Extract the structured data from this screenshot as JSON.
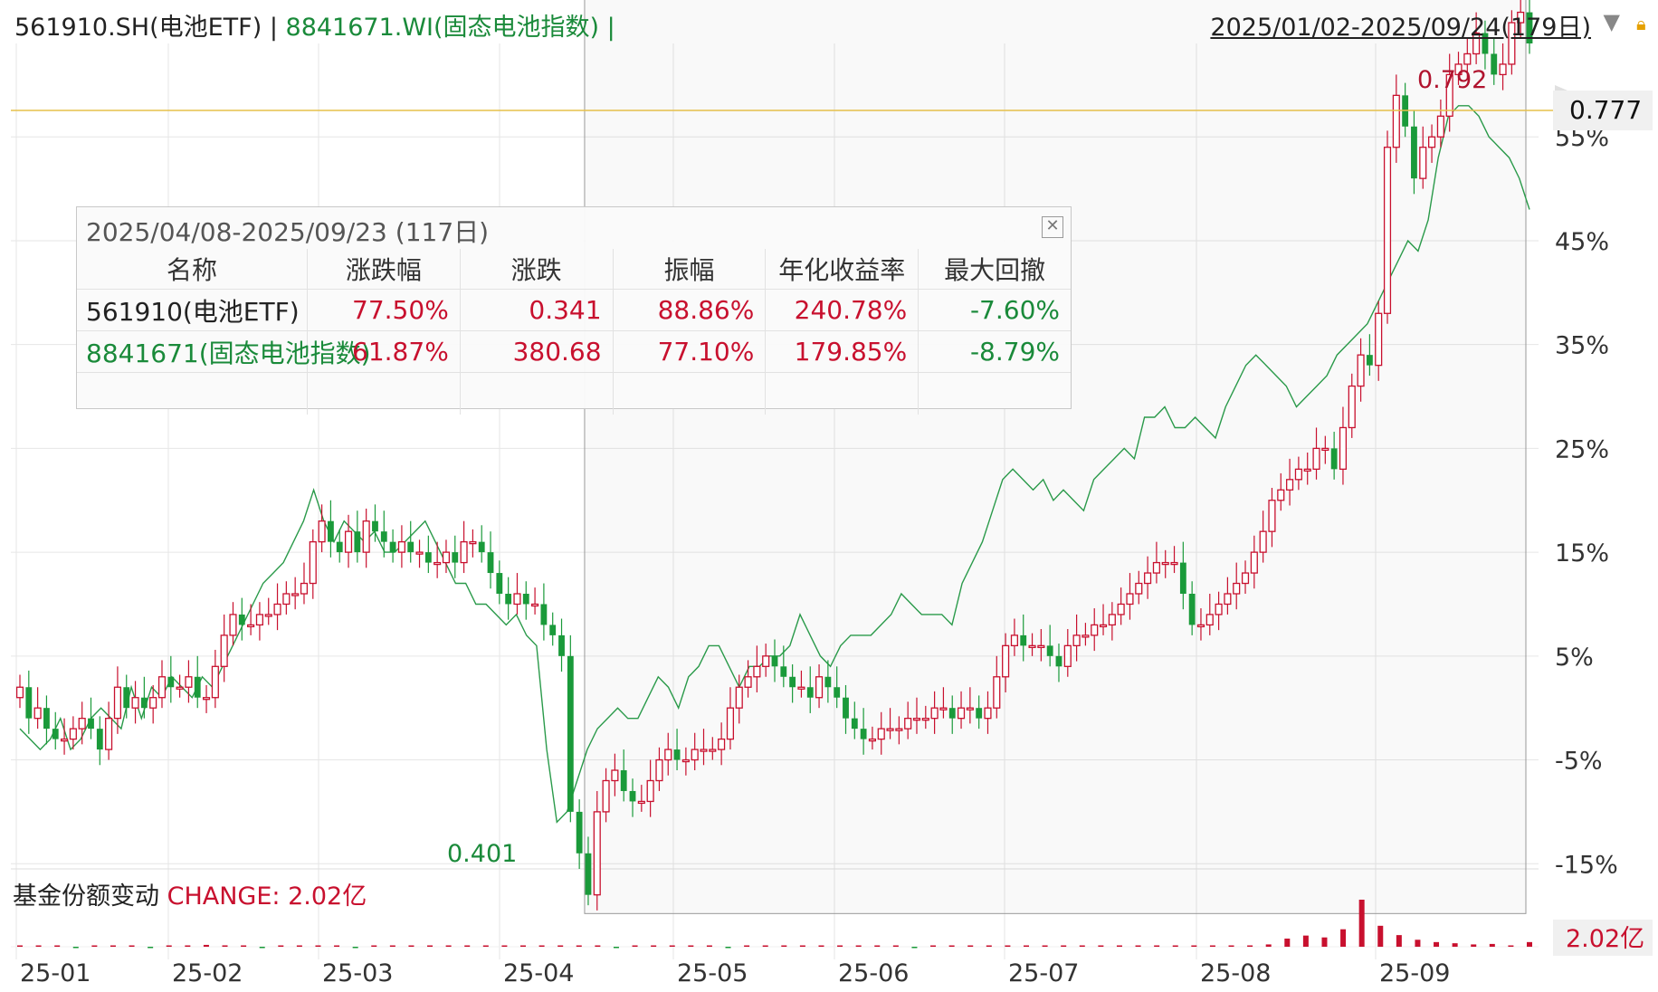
{
  "header": {
    "symbol1": "561910.SH(电池ETF)",
    "sep1": " | ",
    "symbol2": "8841671.WI(固态电池指数)",
    "sep2": " |",
    "date_range": "2025/01/02-2025/09/24(179日)"
  },
  "popup": {
    "title": "2025/04/08-2025/09/23 (117日)",
    "columns": [
      "名称",
      "涨跌幅",
      "涨跌",
      "振幅",
      "年化收益率",
      "最大回撤"
    ],
    "rows": [
      {
        "name": "561910(电池ETF)",
        "change_pct": "77.50%",
        "change": "0.341",
        "amplitude": "88.86%",
        "annual": "240.78%",
        "drawdown": "-7.60%"
      },
      {
        "name": "8841671(固态电池指数)",
        "change_pct": "61.87%",
        "change": "380.68",
        "amplitude": "77.10%",
        "annual": "179.85%",
        "drawdown": "-8.79%"
      }
    ]
  },
  "sub_panel": {
    "label": "基金份额变动",
    "change_label": "CHANGE: 2.02亿",
    "current_tag": "2.02亿"
  },
  "colors": {
    "up": "#c8102e",
    "down": "#1a9a3a",
    "index_line": "#2a9a4a",
    "grid": "#e6e6e6",
    "last_line": "#e6c04a"
  },
  "chart_data": {
    "type": "line",
    "x_tick_labels": [
      "25-01",
      "25-02",
      "25-03",
      "25-04",
      "25-05",
      "25-06",
      "25-07",
      "25-08",
      "25-09"
    ],
    "y_tick_labels": [
      "55%",
      "45%",
      "35%",
      "25%",
      "15%",
      "5%",
      "-5%",
      "-15%"
    ],
    "ylim_pct": [
      -15.5,
      64
    ],
    "price_labels": {
      "last": "0.777",
      "high": "0.792",
      "low": "0.401"
    },
    "series": [
      {
        "type": "candlestick",
        "values_pct": [
          2,
          -1,
          0,
          -2,
          -3,
          -3,
          -2,
          -1,
          -2,
          -4,
          -1,
          2,
          0,
          1,
          0,
          1,
          3,
          2,
          2,
          3,
          1,
          1,
          4,
          7,
          9,
          8,
          8,
          9,
          9,
          10,
          11,
          11,
          12,
          16,
          18,
          16,
          15,
          17,
          15,
          18,
          17,
          16,
          15,
          16,
          15,
          15,
          14,
          14,
          15,
          14,
          16,
          16,
          15,
          13,
          11,
          10,
          11,
          10,
          10,
          8,
          7,
          5,
          -10,
          -14,
          -18,
          -10,
          -7,
          -6,
          -8,
          -9,
          -9,
          -7,
          -5,
          -4,
          -5,
          -5,
          -4,
          -4,
          -4,
          -3,
          0,
          2,
          3,
          4,
          5,
          4,
          3,
          2,
          2,
          1,
          3,
          2,
          1,
          -1,
          -2,
          -3,
          -3,
          -2,
          -2,
          -2,
          -1,
          -1,
          -1,
          0,
          0,
          -1,
          0,
          0,
          -1,
          0,
          3,
          6,
          7,
          6,
          6,
          6,
          5,
          4,
          6,
          7,
          7,
          8,
          8,
          9,
          10,
          11,
          12,
          13,
          14,
          14,
          14,
          11,
          8,
          8,
          9,
          10,
          11,
          12,
          13,
          15,
          17,
          20,
          21,
          22,
          23,
          23,
          25,
          25,
          23,
          27,
          31,
          34,
          33,
          38,
          54,
          59,
          56,
          51,
          54,
          55,
          57,
          61,
          62,
          63,
          65,
          63,
          61,
          62,
          66,
          67,
          64
        ]
      },
      {
        "type": "line",
        "values_pct": [
          -2,
          -3,
          -4,
          -3,
          -1,
          -4,
          -3,
          -1,
          0,
          -1,
          -2,
          2,
          -1,
          2,
          1,
          3,
          2,
          1,
          3,
          2,
          4,
          6,
          8,
          10,
          12,
          13,
          14,
          16,
          18,
          21,
          18,
          16,
          18,
          17,
          16,
          17,
          15,
          15,
          16,
          17,
          18,
          16,
          14,
          12,
          12,
          10,
          10,
          9,
          8,
          9,
          7,
          6,
          -4,
          -11,
          -10,
          -7,
          -4,
          -2,
          -1,
          0,
          -1,
          -1,
          1,
          3,
          2,
          0,
          3,
          4,
          6,
          6,
          4,
          2,
          4,
          4,
          5,
          5,
          6,
          9,
          7,
          5,
          4,
          6,
          7,
          7,
          7,
          8,
          9,
          11,
          10,
          9,
          9,
          9,
          8,
          12,
          14,
          16,
          19,
          22,
          23,
          22,
          21,
          22,
          20,
          21,
          20,
          19,
          22,
          23,
          24,
          25,
          24,
          28,
          28,
          29,
          27,
          27,
          28,
          27,
          26,
          29,
          31,
          33,
          34,
          33,
          32,
          31,
          29,
          30,
          31,
          32,
          34,
          35,
          36,
          37,
          39,
          41,
          43,
          45,
          44,
          47,
          53,
          57,
          58,
          58,
          57,
          55,
          54,
          53,
          51,
          48
        ],
        "name": ""
      },
      {
        "type": "bar",
        "name": "基金份额变动",
        "values": [
          0,
          0.05,
          0,
          -0.03,
          0,
          0.02,
          0,
          -0.02,
          0.03,
          0,
          0.08,
          0.06,
          0.02,
          -0.05,
          0,
          0.03,
          0.02,
          0,
          -0.02,
          0,
          0,
          0.03,
          0.02,
          0,
          0,
          0.05,
          0.04,
          0.02,
          0,
          0,
          0.03,
          0,
          -0.02,
          0,
          0,
          0.02,
          0,
          0,
          -0.03,
          0,
          0.05,
          0.03,
          0,
          0,
          0.02,
          0,
          0,
          0,
          -0.02,
          0.03,
          0,
          0,
          0.02,
          0,
          0,
          0,
          0.03,
          0.02,
          0,
          0.05,
          0.04,
          0.03,
          0.02,
          0,
          0,
          0,
          0.04,
          0.1,
          0.35,
          0.48,
          0.4,
          0.75,
          2.02,
          0.9,
          0.5,
          0.3,
          0.2,
          0.15,
          0.1,
          0.12,
          0.05,
          0.2
        ]
      }
    ]
  }
}
